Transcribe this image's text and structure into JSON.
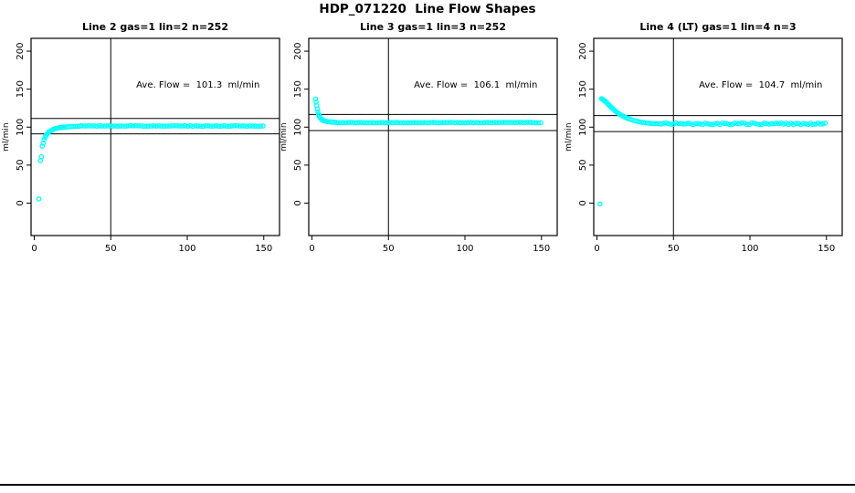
{
  "figure": {
    "title": "HDP_071220  Line Flow Shapes"
  },
  "chart_data": {
    "type": "scatter",
    "point_style": {
      "shape": "open-circle",
      "color": "#00FFFF",
      "radius_px": 2.2
    },
    "axes": {
      "xlim": [
        -2.1,
        160.3
      ],
      "ylim": [
        -42.7,
        216.9
      ],
      "xticks": [
        0,
        50,
        100,
        150
      ],
      "yticks": [
        0,
        50,
        100,
        150,
        200
      ],
      "ylabel": "ml/min",
      "xlabel": "",
      "vline_x": 50,
      "box": true,
      "grid": false
    },
    "panels": [
      {
        "title": "Line 2 gas=1 lin=2 n=252",
        "annotation": "Ave. Flow =  101.3  ml/min",
        "ave_flow_ml_min": 101.3,
        "n": 252,
        "hlines": [
          111.4,
          91.2
        ],
        "points": [
          [
            3,
            5.5
          ],
          [
            4,
            56
          ],
          [
            4.7,
            61
          ],
          [
            5.2,
            75
          ],
          [
            5.8,
            79
          ],
          [
            6.4,
            83.5
          ],
          [
            7,
            86.5
          ],
          [
            7.6,
            88.8
          ],
          [
            8.2,
            90.5
          ],
          [
            8.8,
            92
          ],
          [
            9.4,
            93.2
          ],
          [
            10,
            94.2
          ],
          [
            10.8,
            95.3
          ],
          [
            11.6,
            96.2
          ],
          [
            12.4,
            97
          ],
          [
            13.2,
            97.6
          ],
          [
            14,
            98.2
          ],
          [
            14.9,
            98.7
          ],
          [
            15.8,
            99.1
          ],
          [
            16.7,
            99.4
          ],
          [
            17.6,
            99.7
          ],
          [
            18.5,
            99.9
          ],
          [
            19.4,
            100.1
          ],
          [
            20.4,
            100.3
          ],
          [
            21.6,
            100.5
          ],
          [
            22.8,
            100.7
          ],
          [
            24,
            100.8
          ],
          [
            25.4,
            100.9
          ],
          [
            26.8,
            101.0
          ],
          [
            28.2,
            101.1
          ],
          [
            29.6,
            101.2
          ]
        ],
        "plateau": {
          "from": 30.5,
          "to": 150,
          "step": 1.7,
          "level": 101.5,
          "noise": 0.4
        }
      },
      {
        "title": "Line 3 gas=1 lin=3 n=252",
        "annotation": "Ave. Flow =  106.1  ml/min",
        "ave_flow_ml_min": 106.1,
        "n": 252,
        "hlines": [
          116.7,
          95.5
        ],
        "points": [
          [
            2.3,
            137
          ],
          [
            2.7,
            133
          ],
          [
            3.1,
            128.5
          ],
          [
            3.5,
            124
          ],
          [
            3.9,
            120
          ],
          [
            4.3,
            117
          ],
          [
            4.8,
            114.5
          ],
          [
            5.3,
            112.5
          ],
          [
            5.9,
            111
          ],
          [
            6.5,
            110
          ],
          [
            7.1,
            109.2
          ],
          [
            7.8,
            108.6
          ],
          [
            8.5,
            108.1
          ],
          [
            9.3,
            107.7
          ],
          [
            10.2,
            107.3
          ],
          [
            11.2,
            107
          ],
          [
            12.4,
            106.8
          ],
          [
            13.7,
            106.6
          ],
          [
            15,
            106.4
          ],
          [
            16,
            106.2
          ]
        ],
        "plateau": {
          "from": 17,
          "to": 150,
          "step": 1.7,
          "level": 106.0,
          "noise": 0.35
        }
      },
      {
        "title": "Line 4 (LT) gas=1 lin=4 n=3",
        "annotation": "Ave. Flow =  104.7  ml/min",
        "ave_flow_ml_min": 104.7,
        "n": 3,
        "hlines": [
          115.2,
          94.2
        ],
        "points": [
          [
            2,
            -1
          ],
          [
            3,
            137.5
          ],
          [
            3.4,
            137
          ],
          [
            3.8,
            136.5
          ],
          [
            4.2,
            136
          ],
          [
            4.6,
            135.3
          ],
          [
            5,
            134.6
          ],
          [
            5.6,
            133.6
          ],
          [
            6.2,
            132.5
          ],
          [
            6.8,
            131.3
          ],
          [
            7.4,
            130
          ],
          [
            8,
            128.8
          ],
          [
            8.7,
            127.4
          ],
          [
            9.4,
            126
          ],
          [
            10.1,
            124.7
          ],
          [
            10.9,
            123.2
          ],
          [
            11.7,
            121.8
          ],
          [
            12.5,
            120.5
          ],
          [
            13.4,
            119.1
          ],
          [
            14.3,
            117.8
          ],
          [
            15.2,
            116.6
          ],
          [
            16.1,
            115.5
          ],
          [
            17,
            114.5
          ],
          [
            18,
            113.4
          ],
          [
            19,
            112.5
          ],
          [
            20,
            111.6
          ],
          [
            21.2,
            110.7
          ],
          [
            22.4,
            109.9
          ],
          [
            23.6,
            109.1
          ],
          [
            24.8,
            108.4
          ],
          [
            26,
            107.8
          ],
          [
            27.5,
            107.1
          ],
          [
            29,
            106.5
          ],
          [
            30.5,
            106
          ],
          [
            32,
            105.6
          ],
          [
            33.5,
            105.3
          ],
          [
            35,
            105
          ],
          [
            36.5,
            104.8
          ],
          [
            38,
            104.7
          ],
          [
            39.5,
            104.6
          ],
          [
            41,
            104.5
          ]
        ],
        "plateau": {
          "from": 42,
          "to": 150,
          "step": 1.6,
          "level": 104.4,
          "noise": 1.2
        }
      }
    ]
  }
}
